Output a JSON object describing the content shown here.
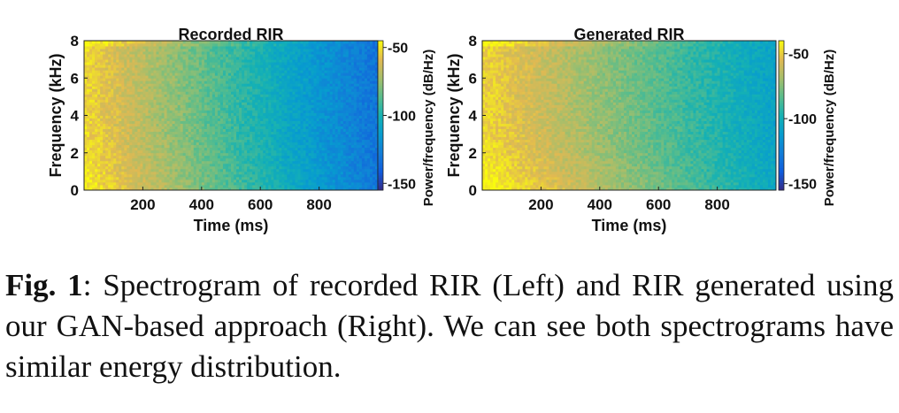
{
  "chart_data": [
    {
      "type": "heatmap",
      "title": "Recorded RIR",
      "xlabel": "Time (ms)",
      "ylabel": "Frequency (kHz)",
      "xlim": [
        0,
        1000
      ],
      "ylim": [
        0,
        8
      ],
      "xticks": [
        200,
        400,
        600,
        800
      ],
      "yticks": [
        0,
        2,
        4,
        6,
        8
      ],
      "colorbar": {
        "label": "Power/frequency (dB/Hz)",
        "range": [
          -155,
          -45
        ],
        "ticks": [
          -50,
          -100,
          -150
        ]
      },
      "level_model": {
        "start_db": -52,
        "end_db": -132,
        "low_freq_boost_db": 6,
        "noise_db": 6
      }
    },
    {
      "type": "heatmap",
      "title": "Generated RIR",
      "xlabel": "Time (ms)",
      "ylabel": "Frequency (kHz)",
      "xlim": [
        0,
        1000
      ],
      "ylim": [
        0,
        8
      ],
      "xticks": [
        200,
        400,
        600,
        800
      ],
      "yticks": [
        0,
        2,
        4,
        6,
        8
      ],
      "colorbar": {
        "label": "Power/frequency (dB/Hz)",
        "range": [
          -155,
          -40
        ],
        "ticks": [
          -50,
          -100,
          -150
        ]
      },
      "level_model": {
        "start_db": -48,
        "end_db": -108,
        "low_freq_boost_db": 10,
        "noise_db": 6
      }
    }
  ],
  "caption": {
    "label": "Fig. 1",
    "text": ": Spectrogram of recorded RIR (Left) and RIR generated using our GAN-based approach (Right). We can see both spectrograms have similar energy distribution."
  },
  "colors": {
    "parula_low": "#352a87",
    "parula_mid": "#1ab3b0",
    "parula_high": "#f9fb0e"
  }
}
